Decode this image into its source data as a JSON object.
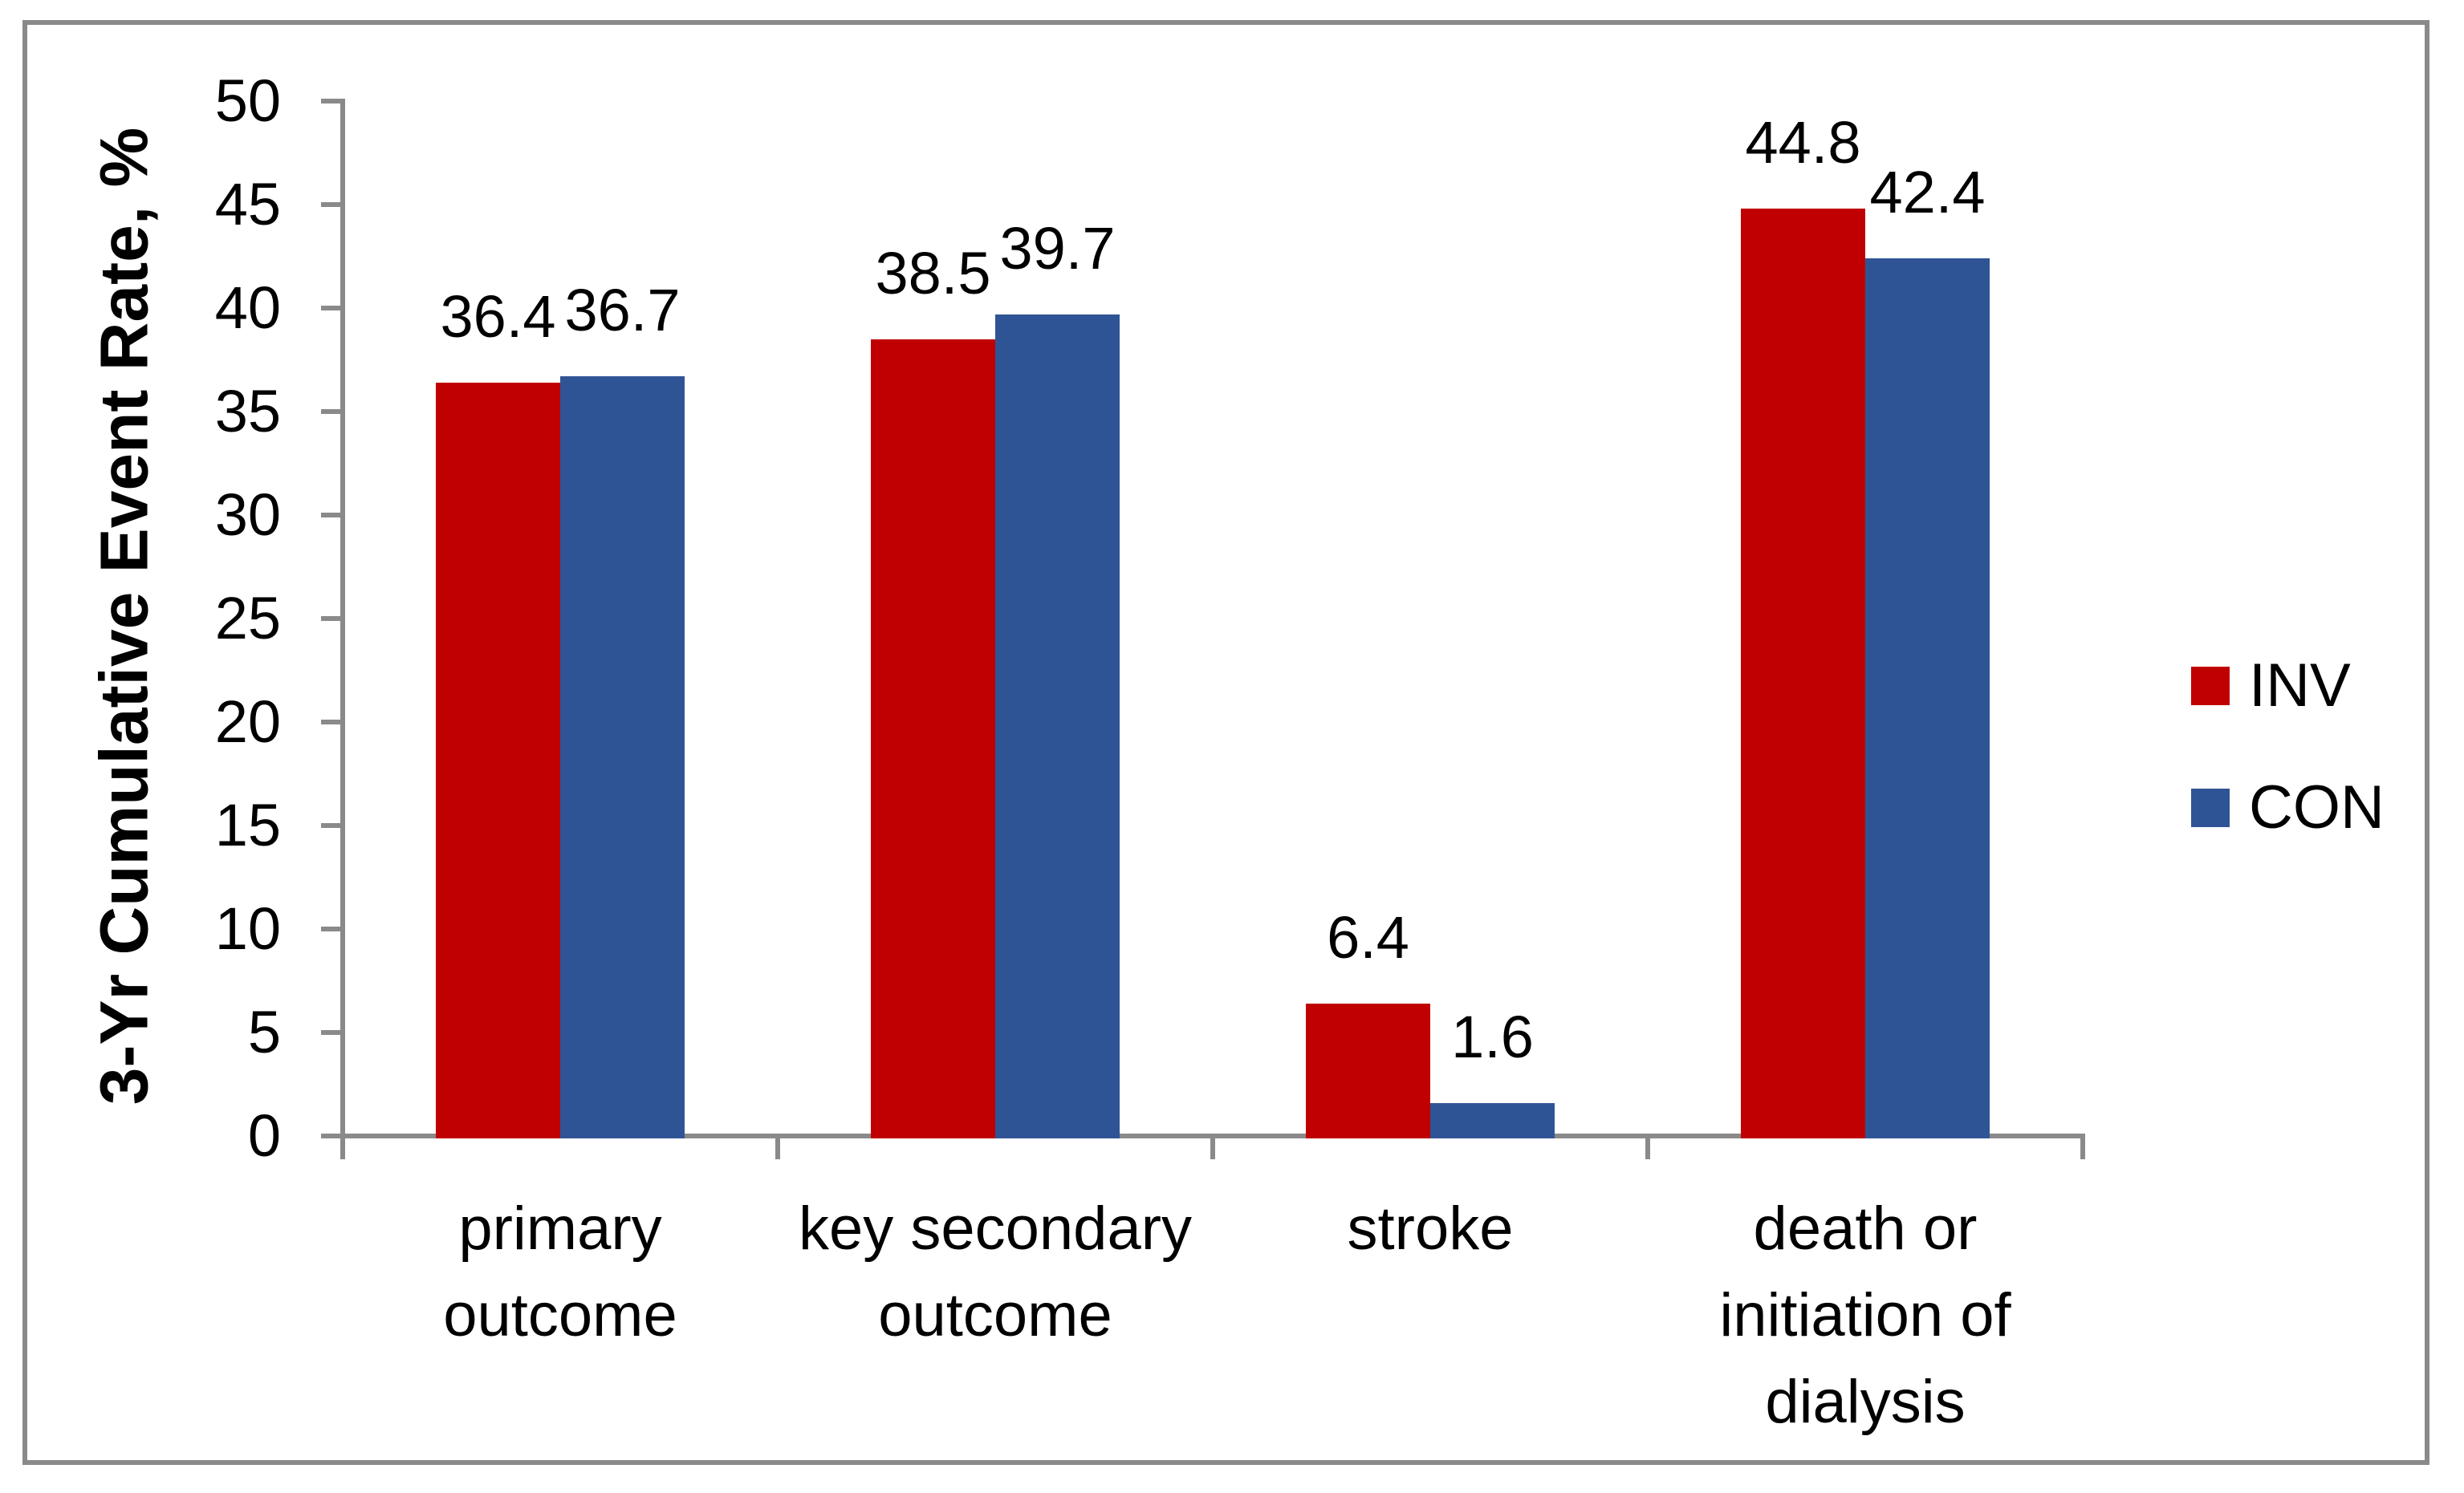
{
  "chart_data": {
    "type": "bar",
    "title": "",
    "xlabel": "",
    "ylabel": "3-Yr Cumulative Event Rate, %",
    "ylim": [
      0,
      50
    ],
    "yticks": [
      0,
      5,
      10,
      15,
      20,
      25,
      30,
      35,
      40,
      45,
      50
    ],
    "grid": false,
    "legend_position": "right",
    "data_labels": true,
    "categories": [
      "primary outcome",
      "key secondary outcome",
      "stroke",
      "death or initiation of dialysis"
    ],
    "category_line_breaks": [
      [
        "primary",
        "outcome"
      ],
      [
        "key secondary",
        "outcome"
      ],
      [
        "stroke"
      ],
      [
        "death or",
        "initiation of",
        "dialysis"
      ]
    ],
    "series": [
      {
        "name": "INV",
        "color": "#C00000",
        "values": [
          36.4,
          38.5,
          6.4,
          44.8
        ]
      },
      {
        "name": "CON",
        "color": "#2F5496",
        "values": [
          36.7,
          39.7,
          1.6,
          42.4
        ]
      }
    ]
  },
  "colors": {
    "axis": "#8A8A8A",
    "frame": "#8A8A8A",
    "text": "#000000",
    "background": "#FFFFFF"
  }
}
